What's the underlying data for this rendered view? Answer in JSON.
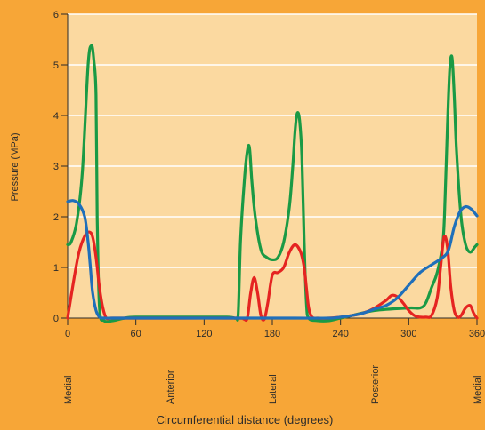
{
  "chart_data": {
    "type": "line",
    "title": "",
    "xlabel": "Circumferential distance (degrees)",
    "ylabel": "Pressure (MPa)",
    "xlim": [
      0,
      360
    ],
    "ylim": [
      0,
      6
    ],
    "x_ticks": [
      0,
      60,
      120,
      180,
      240,
      300,
      360
    ],
    "y_ticks": [
      0,
      1,
      2,
      3,
      4,
      5,
      6
    ],
    "grid": "horizontal",
    "legend": "none",
    "plot_background": "#fbd9a0",
    "anatomy_labels": [
      {
        "text": "Medial",
        "x": 0
      },
      {
        "text": "Anterior",
        "x": 90
      },
      {
        "text": "Lateral",
        "x": 180
      },
      {
        "text": "Posterior",
        "x": 270
      },
      {
        "text": "Medial",
        "x": 360
      }
    ],
    "series": [
      {
        "color": "#1a9a45",
        "x": [
          0,
          3,
          8,
          13,
          18,
          21,
          23,
          25,
          26,
          28,
          32,
          40,
          50,
          60,
          100,
          140,
          148,
          150,
          152,
          155,
          158,
          160,
          162,
          165,
          170,
          175,
          180,
          185,
          190,
          195,
          198,
          200,
          202,
          204,
          206,
          208,
          210,
          212,
          220,
          230,
          240,
          250,
          270,
          300,
          310,
          315,
          320,
          325,
          330,
          332,
          334,
          336,
          338,
          340,
          342,
          346,
          350,
          354,
          358,
          360
        ],
        "values": [
          1.45,
          1.5,
          1.9,
          2.9,
          5.0,
          5.38,
          5.1,
          4.4,
          2.0,
          0.2,
          -0.05,
          -0.05,
          0.0,
          0.02,
          0.02,
          0.02,
          0.0,
          0.1,
          1.5,
          2.6,
          3.3,
          3.35,
          2.7,
          2.0,
          1.35,
          1.2,
          1.15,
          1.2,
          1.5,
          2.2,
          3.0,
          3.7,
          4.05,
          3.9,
          3.2,
          1.5,
          0.3,
          0.0,
          -0.05,
          -0.05,
          0.0,
          0.05,
          0.15,
          0.2,
          0.2,
          0.3,
          0.6,
          0.9,
          1.5,
          2.4,
          3.8,
          4.9,
          5.15,
          4.4,
          3.3,
          2.0,
          1.45,
          1.3,
          1.4,
          1.45
        ]
      },
      {
        "color": "#e52421",
        "x": [
          0,
          5,
          10,
          15,
          19,
          22,
          25,
          28,
          31,
          34,
          38,
          45,
          60,
          100,
          150,
          155,
          158,
          161,
          164,
          167,
          170,
          173,
          176,
          180,
          185,
          190,
          195,
          200,
          205,
          208,
          210,
          212,
          215,
          220,
          230,
          240,
          250,
          260,
          270,
          280,
          285,
          290,
          295,
          300,
          305,
          310,
          315,
          320,
          325,
          328,
          331,
          334,
          337,
          340,
          343,
          346,
          350,
          354,
          357,
          360
        ],
        "values": [
          0.0,
          0.7,
          1.3,
          1.62,
          1.7,
          1.6,
          1.2,
          0.6,
          0.2,
          0.0,
          0.0,
          0.0,
          0.0,
          0.0,
          0.0,
          -0.02,
          0.0,
          0.5,
          0.8,
          0.5,
          0.05,
          -0.02,
          0.3,
          0.85,
          0.9,
          1.0,
          1.3,
          1.45,
          1.3,
          1.0,
          0.6,
          0.2,
          0.02,
          0.0,
          0.0,
          0.02,
          0.05,
          0.1,
          0.2,
          0.35,
          0.45,
          0.42,
          0.3,
          0.15,
          0.05,
          0.02,
          0.02,
          0.05,
          0.4,
          1.0,
          1.6,
          1.4,
          0.6,
          0.15,
          0.02,
          0.05,
          0.2,
          0.25,
          0.1,
          0.0
        ]
      },
      {
        "color": "#1f6fba",
        "x": [
          0,
          5,
          10,
          15,
          18,
          20,
          22,
          25,
          28,
          32,
          40,
          60,
          100,
          150,
          200,
          230,
          240,
          250,
          260,
          270,
          280,
          290,
          300,
          310,
          320,
          330,
          335,
          340,
          345,
          350,
          355,
          360
        ],
        "values": [
          2.3,
          2.32,
          2.25,
          2.0,
          1.5,
          1.0,
          0.5,
          0.15,
          0.02,
          0.0,
          0.0,
          0.0,
          0.0,
          0.0,
          0.0,
          0.0,
          0.02,
          0.05,
          0.1,
          0.18,
          0.25,
          0.4,
          0.65,
          0.9,
          1.05,
          1.2,
          1.35,
          1.8,
          2.1,
          2.2,
          2.15,
          2.02
        ]
      }
    ]
  }
}
